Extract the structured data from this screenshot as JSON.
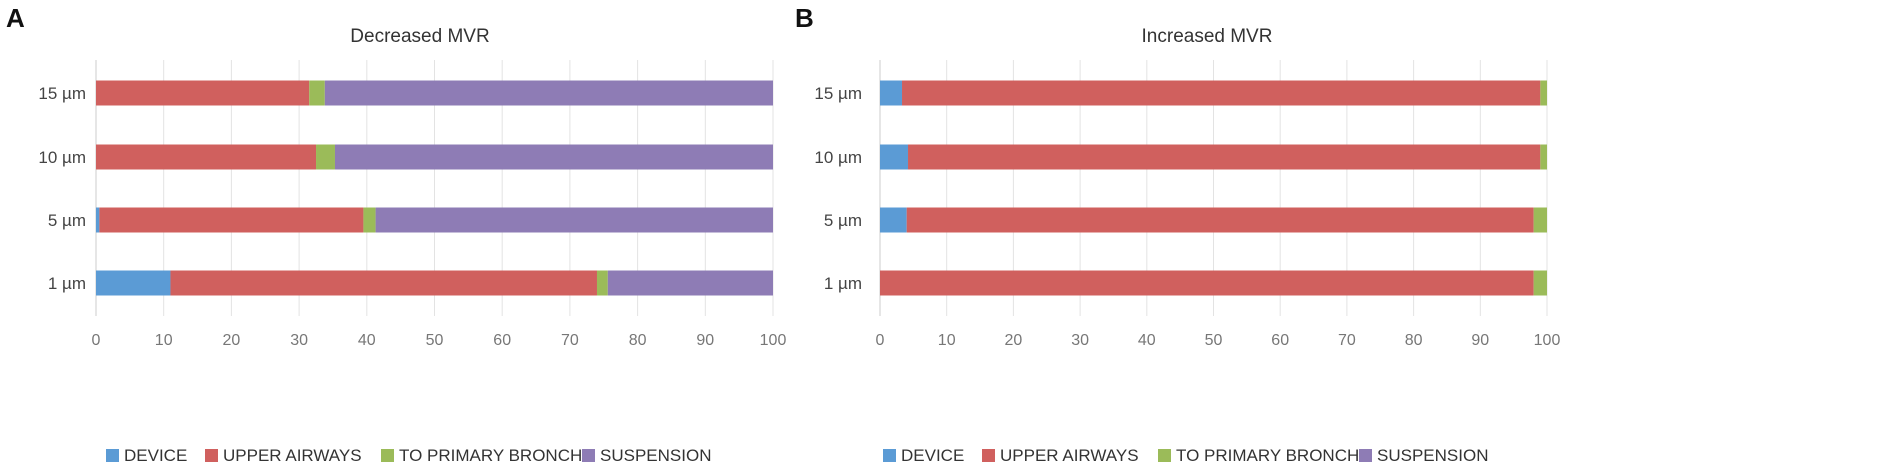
{
  "chart_data": [
    {
      "type": "bar",
      "orientation": "horizontal",
      "stacked": true,
      "panel": "A",
      "title": "Decreased MVR",
      "categories": [
        "15 µm",
        "10 µm",
        "5 µm",
        "1 µm"
      ],
      "xlim": [
        0,
        100
      ],
      "xticks": [
        "0",
        "10",
        "20",
        "30",
        "40",
        "50",
        "60",
        "70",
        "80",
        "90",
        "100"
      ],
      "grid": true,
      "legend_position": "bottom",
      "series": [
        {
          "name": "DEVICE",
          "color": "#5b9bd5",
          "values": [
            0,
            0,
            0.5,
            11
          ]
        },
        {
          "name": "UPPER AIRWAYS",
          "color": "#d0605e",
          "values": [
            31.5,
            32.5,
            39,
            63
          ]
        },
        {
          "name": "TO PRIMARY BRONCHI",
          "color": "#9bbb59",
          "values": [
            2.3,
            2.8,
            1.8,
            1.6
          ]
        },
        {
          "name": "SUSPENSION",
          "color": "#8e7cb5",
          "values": [
            66.2,
            64.7,
            58.7,
            24.4
          ]
        }
      ]
    },
    {
      "type": "bar",
      "orientation": "horizontal",
      "stacked": true,
      "panel": "B",
      "title": "Increased MVR",
      "categories": [
        "15 µm",
        "10 µm",
        "5 µm",
        "1 µm"
      ],
      "xlim": [
        0,
        100
      ],
      "xticks": [
        "0",
        "10",
        "20",
        "30",
        "40",
        "50",
        "60",
        "70",
        "80",
        "90",
        "100"
      ],
      "grid": true,
      "legend_position": "bottom",
      "series": [
        {
          "name": "DEVICE",
          "color": "#5b9bd5",
          "values": [
            3.3,
            4.2,
            4,
            0
          ]
        },
        {
          "name": "UPPER AIRWAYS",
          "color": "#d0605e",
          "values": [
            95.7,
            94.8,
            94,
            98
          ]
        },
        {
          "name": "TO PRIMARY BRONCHI",
          "color": "#9bbb59",
          "values": [
            1,
            1,
            2,
            2
          ]
        },
        {
          "name": "SUSPENSION",
          "color": "#8e7cb5",
          "values": [
            0,
            0,
            0,
            0
          ]
        }
      ]
    }
  ]
}
